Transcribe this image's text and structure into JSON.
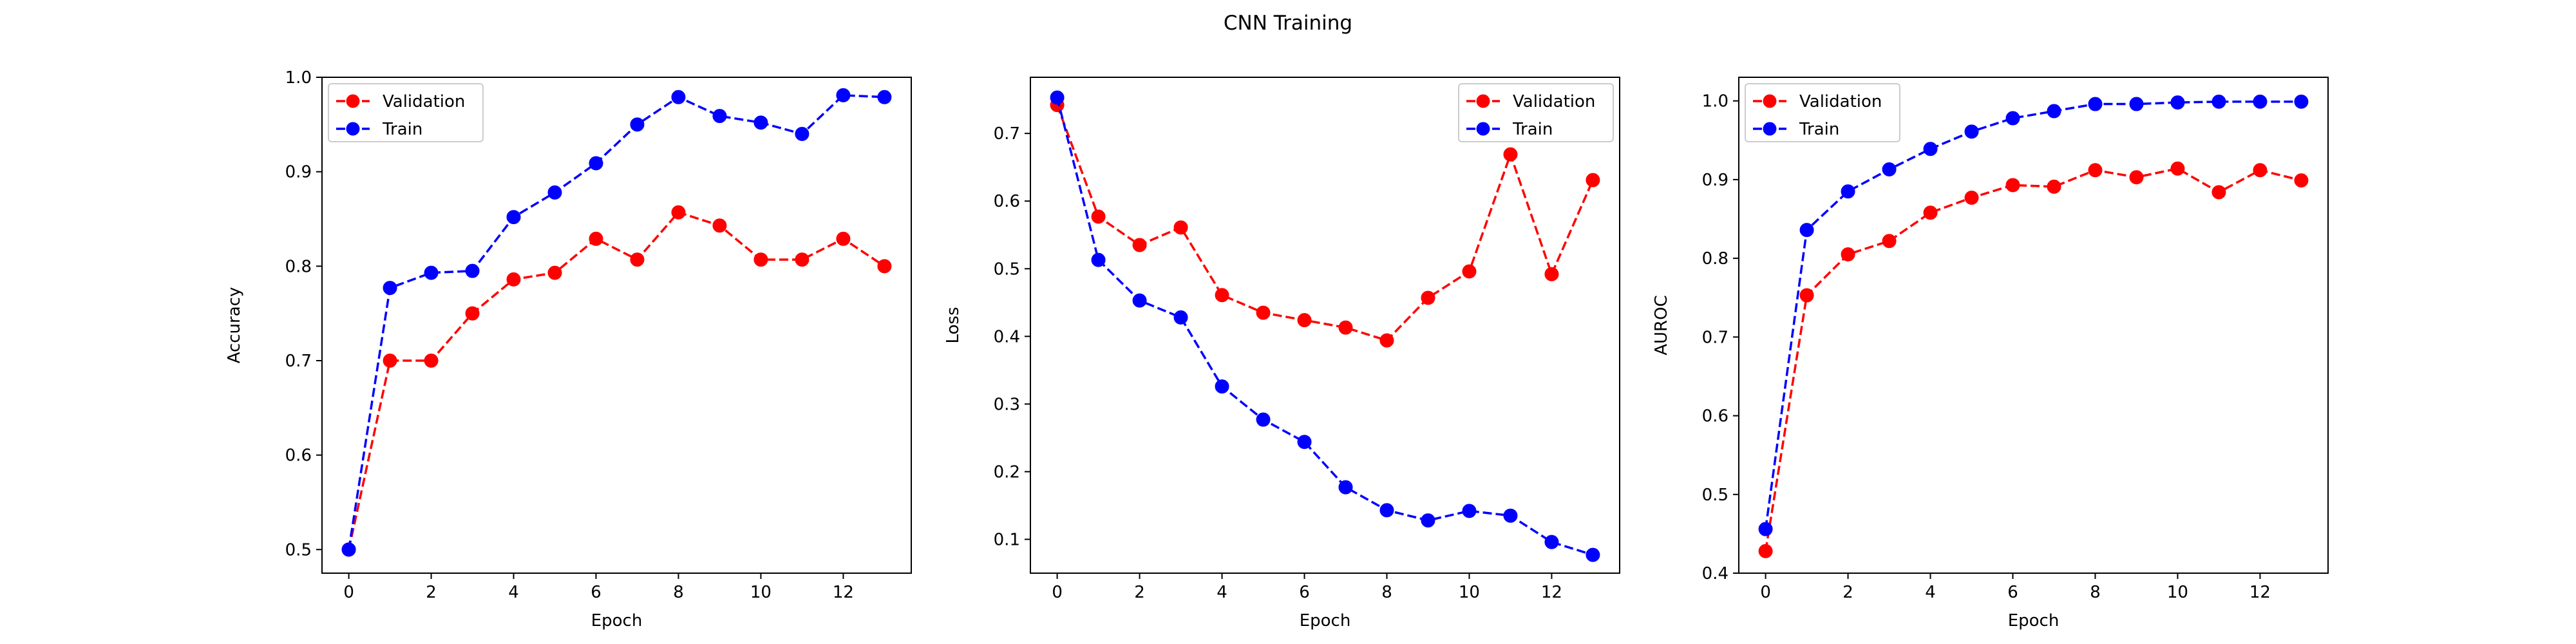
{
  "figure": {
    "title": "CNN Training",
    "colors": {
      "validation": "#ff0000",
      "train": "#0000ff"
    }
  },
  "chart_data": [
    {
      "type": "line",
      "title": "",
      "xlabel": "Epoch",
      "ylabel": "Accuracy",
      "xlim": [
        -0.65,
        13.65
      ],
      "ylim": [
        0.475,
        1.0
      ],
      "xticks": [
        0,
        2,
        4,
        6,
        8,
        10,
        12
      ],
      "xtick_labels": [
        "0",
        "2",
        "4",
        "6",
        "8",
        "10",
        "12"
      ],
      "yticks": [
        0.5,
        0.6,
        0.7,
        0.8,
        0.9,
        1.0
      ],
      "ytick_labels": [
        "0.5",
        "0.6",
        "0.7",
        "0.8",
        "0.9",
        "1.0"
      ],
      "grid": false,
      "legend_position": "upper left",
      "x": [
        0,
        1,
        2,
        3,
        4,
        5,
        6,
        7,
        8,
        9,
        10,
        11,
        12,
        13
      ],
      "series": [
        {
          "name": "Validation",
          "color": "#ff0000",
          "style": "dashed",
          "marker": "circle",
          "values": [
            0.5,
            0.7,
            0.7,
            0.75,
            0.786,
            0.793,
            0.829,
            0.807,
            0.857,
            0.843,
            0.807,
            0.807,
            0.829,
            0.8
          ]
        },
        {
          "name": "Train",
          "color": "#0000ff",
          "style": "dashed",
          "marker": "circle",
          "values": [
            0.5,
            0.777,
            0.793,
            0.795,
            0.852,
            0.878,
            0.909,
            0.95,
            0.979,
            0.959,
            0.952,
            0.94,
            0.981,
            0.979
          ]
        }
      ]
    },
    {
      "type": "line",
      "title": "",
      "xlabel": "Epoch",
      "ylabel": "Loss",
      "xlim": [
        -0.65,
        13.65
      ],
      "ylim": [
        0.05,
        0.783
      ],
      "xticks": [
        0,
        2,
        4,
        6,
        8,
        10,
        12
      ],
      "xtick_labels": [
        "0",
        "2",
        "4",
        "6",
        "8",
        "10",
        "12"
      ],
      "yticks": [
        0.1,
        0.2,
        0.3,
        0.4,
        0.5,
        0.6,
        0.7
      ],
      "ytick_labels": [
        "0.1",
        "0.2",
        "0.3",
        "0.4",
        "0.5",
        "0.6",
        "0.7"
      ],
      "grid": false,
      "legend_position": "upper right",
      "x": [
        0,
        1,
        2,
        3,
        4,
        5,
        6,
        7,
        8,
        9,
        10,
        11,
        12,
        13
      ],
      "series": [
        {
          "name": "Validation",
          "color": "#ff0000",
          "style": "dashed",
          "marker": "circle",
          "values": [
            0.742,
            0.577,
            0.535,
            0.561,
            0.461,
            0.435,
            0.424,
            0.413,
            0.394,
            0.457,
            0.496,
            0.669,
            0.492,
            0.631
          ]
        },
        {
          "name": "Train",
          "color": "#0000ff",
          "style": "dashed",
          "marker": "circle",
          "values": [
            0.753,
            0.513,
            0.453,
            0.428,
            0.326,
            0.277,
            0.244,
            0.177,
            0.143,
            0.128,
            0.142,
            0.135,
            0.096,
            0.077
          ]
        }
      ]
    },
    {
      "type": "line",
      "title": "",
      "xlabel": "Epoch",
      "ylabel": "AUROC",
      "xlim": [
        -0.65,
        13.65
      ],
      "ylim": [
        0.4,
        1.03
      ],
      "xticks": [
        0,
        2,
        4,
        6,
        8,
        10,
        12
      ],
      "xtick_labels": [
        "0",
        "2",
        "4",
        "6",
        "8",
        "10",
        "12"
      ],
      "yticks": [
        0.4,
        0.5,
        0.6,
        0.7,
        0.8,
        0.9,
        1.0
      ],
      "ytick_labels": [
        "0.4",
        "0.5",
        "0.6",
        "0.7",
        "0.8",
        "0.9",
        "1.0"
      ],
      "grid": false,
      "legend_position": "upper left",
      "x": [
        0,
        1,
        2,
        3,
        4,
        5,
        6,
        7,
        8,
        9,
        10,
        11,
        12,
        13
      ],
      "series": [
        {
          "name": "Validation",
          "color": "#ff0000",
          "style": "dashed",
          "marker": "circle",
          "values": [
            0.428,
            0.753,
            0.805,
            0.822,
            0.858,
            0.877,
            0.893,
            0.891,
            0.912,
            0.903,
            0.914,
            0.884,
            0.912,
            0.899
          ]
        },
        {
          "name": "Train",
          "color": "#0000ff",
          "style": "dashed",
          "marker": "circle",
          "values": [
            0.456,
            0.836,
            0.885,
            0.913,
            0.939,
            0.961,
            0.978,
            0.987,
            0.996,
            0.996,
            0.998,
            0.999,
            0.999,
            0.999
          ]
        }
      ]
    }
  ]
}
